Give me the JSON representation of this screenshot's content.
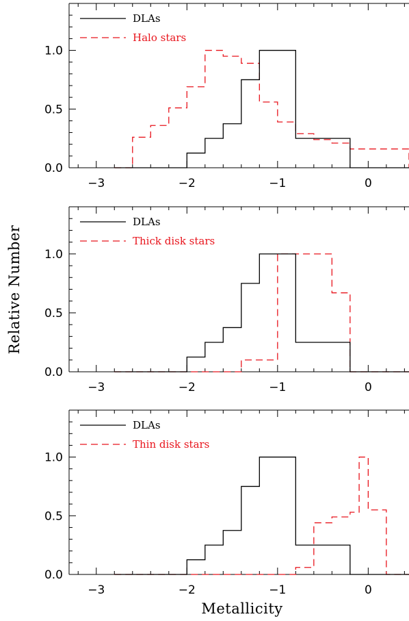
{
  "chart_data": {
    "type": "histogram",
    "xlabel": "Metallicity",
    "ylabel": "Relative Number",
    "xlim": [
      -3.3,
      0.45
    ],
    "ylim": [
      0,
      1.4
    ],
    "x_ticks": [
      -3,
      -2,
      -1,
      0
    ],
    "x_tick_labels": [
      "−3",
      "−2",
      "−1",
      "0"
    ],
    "y_ticks": [
      0,
      0.5,
      1
    ],
    "y_tick_labels": [
      "0.0",
      "0.5",
      "1.0"
    ],
    "colors": {
      "dla": "#000000",
      "stars": "#e8141c"
    },
    "panels": [
      {
        "series": [
          {
            "name": "DLAs",
            "style": "solid",
            "color": "#000000",
            "x": [
              -2.8,
              -2.0,
              -1.8,
              -1.6,
              -1.4,
              -1.2,
              -0.8,
              -0.2,
              0.45
            ],
            "y": [
              0,
              0.125,
              0.25,
              0.375,
              0.75,
              1.0,
              0.25,
              0
            ]
          },
          {
            "name": "Halo stars",
            "style": "dashed",
            "color": "#e8141c",
            "x": [
              -2.8,
              -2.6,
              -2.4,
              -2.2,
              -2.0,
              -1.8,
              -1.6,
              -1.4,
              -1.2,
              -1.0,
              -0.8,
              -0.6,
              -0.4,
              -0.2,
              0.45
            ],
            "y": [
              0,
              0.26,
              0.36,
              0.51,
              0.69,
              1.0,
              0.95,
              0.89,
              0.56,
              0.39,
              0.29,
              0.24,
              0.21,
              0.16,
              0
            ]
          }
        ]
      },
      {
        "series": [
          {
            "name": "DLAs",
            "style": "solid",
            "color": "#000000",
            "x": [
              -2.8,
              -2.0,
              -1.8,
              -1.6,
              -1.4,
              -1.2,
              -0.8,
              -0.2,
              0.45
            ],
            "y": [
              0,
              0.125,
              0.25,
              0.375,
              0.75,
              1.0,
              0.25,
              0
            ]
          },
          {
            "name": "Thick disk stars",
            "style": "dashed",
            "color": "#e8141c",
            "x": [
              -2.8,
              -1.4,
              -1.0,
              -0.4,
              -0.2,
              0.45
            ],
            "y": [
              0,
              0.1,
              1.0,
              0.67,
              0
            ]
          }
        ]
      },
      {
        "series": [
          {
            "name": "DLAs",
            "style": "solid",
            "color": "#000000",
            "x": [
              -2.8,
              -2.0,
              -1.8,
              -1.6,
              -1.4,
              -1.2,
              -0.8,
              -0.2,
              0.45
            ],
            "y": [
              0,
              0.125,
              0.25,
              0.375,
              0.75,
              1.0,
              0.25,
              0
            ]
          },
          {
            "name": "Thin disk stars",
            "style": "dashed",
            "color": "#e8141c",
            "x": [
              -2.8,
              -0.8,
              -0.6,
              -0.4,
              -0.2,
              -0.1,
              0.0,
              0.2,
              0.45
            ],
            "y": [
              0,
              0.06,
              0.44,
              0.49,
              0.53,
              1.0,
              0.55,
              0
            ]
          }
        ]
      }
    ]
  }
}
